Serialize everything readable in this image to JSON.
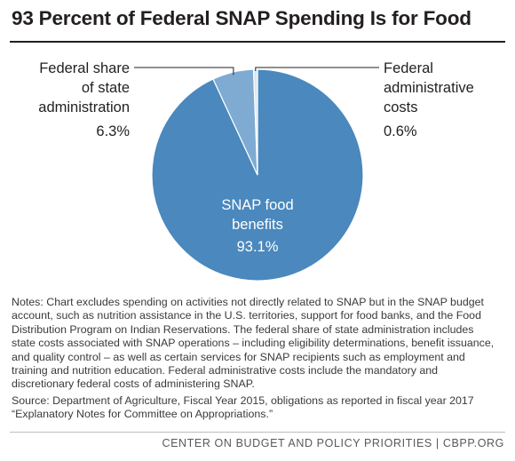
{
  "chart_data": {
    "type": "pie",
    "title": "93 Percent of Federal SNAP Spending Is for Food",
    "slices": [
      {
        "label": [
          "SNAP food",
          "benefits"
        ],
        "value": 93.1,
        "value_text": "93.1%",
        "color": "#4a88bd"
      },
      {
        "label": [
          "Federal share",
          "of state",
          "administration"
        ],
        "value": 6.3,
        "value_text": "6.3%",
        "color": "#7fabd2"
      },
      {
        "label": [
          "Federal",
          "administrative",
          "costs"
        ],
        "value": 0.6,
        "value_text": "0.6%",
        "color": "#dbe6f1"
      }
    ]
  },
  "notes": "Notes: Chart excludes spending on activities not directly related to SNAP but in the SNAP budget account, such as nutrition assistance in the U.S. territories, support for food banks, and the Food Distribution Program on Indian Reservations. The federal share of state administration includes state costs associated with SNAP operations – including eligibility determinations, benefit issuance, and quality control – as well as certain services for SNAP recipients such as employment and training and nutrition education. Federal administrative costs include the mandatory and discretionary federal costs of administering SNAP.",
  "source": "Source: Department of Agriculture, Fiscal Year 2015, obligations as reported in fiscal year 2017 “Explanatory Notes for Committee on Appropriations.”",
  "footer": "CENTER ON BUDGET AND POLICY PRIORITIES | CBPP.ORG"
}
